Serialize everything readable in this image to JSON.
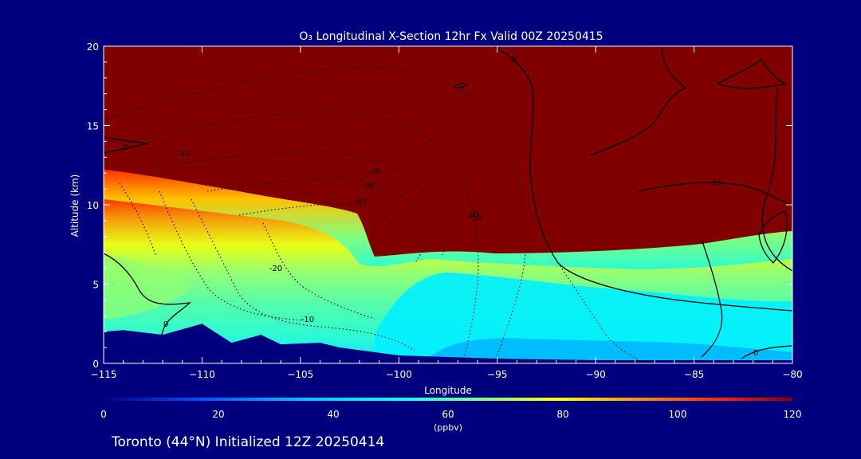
{
  "chart_data": {
    "type": "heatmap",
    "title": "O₃ Longitudinal X-Section 12hr  Fx Valid 00Z 20250415",
    "xlabel": "Longitude",
    "ylabel": "Altitude (km)",
    "xlim": [
      -115,
      -80
    ],
    "ylim": [
      0,
      20
    ],
    "xticks": [
      -115,
      -110,
      -105,
      -100,
      -95,
      -90,
      -85,
      -80
    ],
    "xtick_labels": [
      "−115",
      "−110",
      "−105",
      "−100",
      "−95",
      "−90",
      "−85",
      "−80"
    ],
    "yticks": [
      0,
      5,
      10,
      15,
      20
    ],
    "ytick_labels": [
      "0",
      "5",
      "10",
      "15",
      "20"
    ],
    "colorbar": {
      "min": 0,
      "max": 120,
      "ticks": [
        0,
        20,
        40,
        60,
        80,
        100,
        120
      ],
      "tick_labels": [
        "0",
        "20",
        "40",
        "60",
        "80",
        "100",
        "120"
      ],
      "unit": "(ppbv)",
      "colors": [
        "#00007f",
        "#0050ff",
        "#00c8ff",
        "#00ffff",
        "#80ff80",
        "#ffff00",
        "#ff9000",
        "#ff2000",
        "#800000"
      ]
    },
    "field_ppbv": {
      "description_of_layers": "stratospheric air above the tropopause is ~120 ppbv; boundary layer near surface is 15-40 ppbv",
      "tropopause_km": [
        {
          "lon": -115,
          "alt": 12.2
        },
        {
          "lon": -112,
          "alt": 11.6
        },
        {
          "lon": -108,
          "alt": 11.0
        },
        {
          "lon": -104,
          "alt": 10.0
        },
        {
          "lon": -102.5,
          "alt": 9.2
        },
        {
          "lon": -101.5,
          "alt": 7.5
        },
        {
          "lon": -100,
          "alt": 6.8
        },
        {
          "lon": -98,
          "alt": 7.0
        },
        {
          "lon": -95,
          "alt": 6.8
        },
        {
          "lon": -90,
          "alt": 7.2
        },
        {
          "lon": -85,
          "alt": 7.7
        },
        {
          "lon": -80,
          "alt": 8.4
        }
      ]
    },
    "contour_labels": [
      "0",
      "-10",
      "-20",
      "-30",
      "-40",
      "-10",
      "-10",
      "10",
      "-20",
      "0",
      "-10",
      "0",
      "0"
    ],
    "terrain_km": [
      {
        "lon": -115,
        "alt": 2.0
      },
      {
        "lon": -114,
        "alt": 2.1
      },
      {
        "lon": -112,
        "alt": 1.8
      },
      {
        "lon": -110,
        "alt": 2.5
      },
      {
        "lon": -108.5,
        "alt": 1.3
      },
      {
        "lon": -107,
        "alt": 1.8
      },
      {
        "lon": -106,
        "alt": 1.2
      },
      {
        "lon": -104,
        "alt": 1.3
      },
      {
        "lon": -103,
        "alt": 1.0
      },
      {
        "lon": -100,
        "alt": 0.5
      },
      {
        "lon": -95,
        "alt": 0.3
      },
      {
        "lon": -90,
        "alt": 0.2
      },
      {
        "lon": -85,
        "alt": 0.2
      },
      {
        "lon": -80,
        "alt": 0.2
      }
    ]
  },
  "footer": {
    "location_text": "Toronto (44°N) Initialized 12Z 20250414"
  }
}
